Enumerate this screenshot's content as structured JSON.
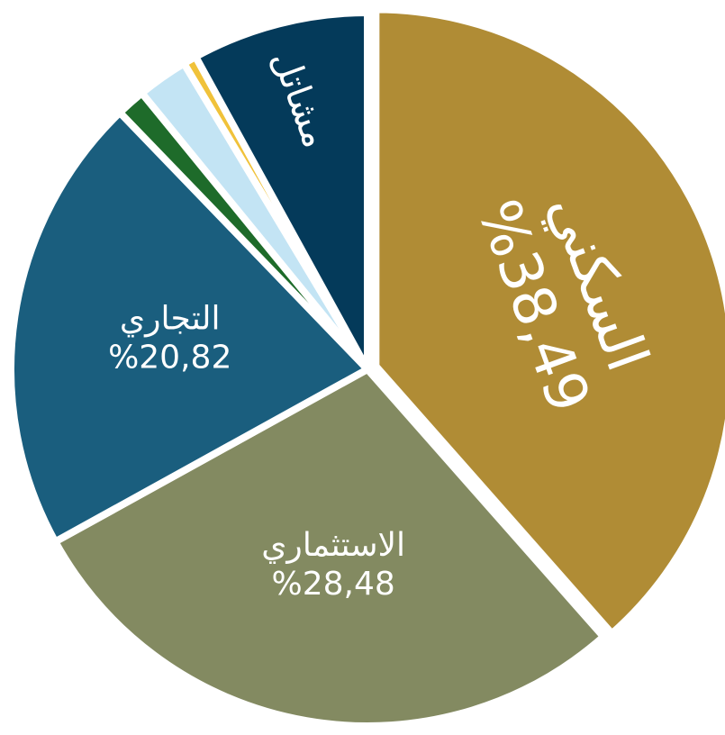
{
  "chart_data": {
    "type": "pie",
    "categories": [
      "السكني",
      "الاستثماري",
      "التجاري",
      null,
      null,
      null,
      "مشاتل"
    ],
    "values": [
      38.49,
      28.48,
      20.82,
      1.31,
      2.3,
      0.6,
      8.0
    ],
    "value_labels": [
      "%38,49",
      "%28,48",
      "%20,82",
      null,
      null,
      null,
      null
    ],
    "colors": [
      "#b08c35",
      "#838a61",
      "#1a5e7e",
      "#1e6b2a",
      "#c3e4f4",
      "#f0c23a",
      "#043a5a"
    ]
  }
}
